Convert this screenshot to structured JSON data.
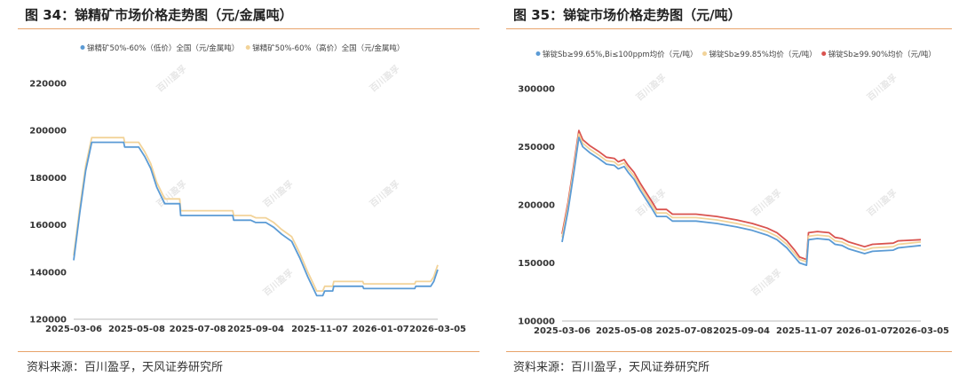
{
  "left": {
    "title": "图 34：锑精矿市场价格走势图（元/金属吨）",
    "source": "资料来源：百川盈孚，天风证券研究所",
    "chart_data": {
      "type": "line",
      "title": "",
      "xlabel": "",
      "ylabel": "",
      "ylim": [
        120000,
        220000
      ],
      "yticks": [
        120000,
        140000,
        160000,
        180000,
        200000,
        220000
      ],
      "xticks": [
        "2025-03-06",
        "2025-05-08",
        "2025-07-08",
        "2025-09-04",
        "2025-11-07",
        "2026-01-07",
        "2026-03-05"
      ],
      "legend_position": "top",
      "grid": false,
      "series": [
        {
          "name": "锑精矿50%-60%（低价）全国（元/金属吨）",
          "color": "#5b9bd5",
          "points": [
            [
              "2025-03-06",
              145000
            ],
            [
              "2025-03-12",
              165000
            ],
            [
              "2025-03-18",
              183000
            ],
            [
              "2025-03-24",
              195000
            ],
            [
              "2025-04-25",
              195000
            ],
            [
              "2025-04-26",
              193000
            ],
            [
              "2025-05-10",
              193000
            ],
            [
              "2025-05-16",
              189000
            ],
            [
              "2025-05-22",
              184000
            ],
            [
              "2025-05-28",
              176000
            ],
            [
              "2025-06-05",
              169000
            ],
            [
              "2025-06-20",
              169000
            ],
            [
              "2025-06-21",
              164000
            ],
            [
              "2025-08-12",
              164000
            ],
            [
              "2025-08-13",
              162000
            ],
            [
              "2025-08-30",
              162000
            ],
            [
              "2025-09-04",
              161000
            ],
            [
              "2025-09-14",
              161000
            ],
            [
              "2025-09-22",
              159000
            ],
            [
              "2025-09-30",
              156000
            ],
            [
              "2025-10-10",
              153000
            ],
            [
              "2025-10-18",
              146000
            ],
            [
              "2025-10-26",
              138000
            ],
            [
              "2025-11-04",
              130000
            ],
            [
              "2025-11-10",
              130000
            ],
            [
              "2025-11-12",
              132000
            ],
            [
              "2025-11-20",
              132000
            ],
            [
              "2025-11-21",
              134000
            ],
            [
              "2025-12-20",
              134000
            ],
            [
              "2025-12-21",
              133000
            ],
            [
              "2026-02-10",
              133000
            ],
            [
              "2026-02-11",
              134000
            ],
            [
              "2026-02-26",
              134000
            ],
            [
              "2026-03-01",
              136000
            ],
            [
              "2026-03-05",
              141000
            ]
          ]
        },
        {
          "name": "锑精矿50%-60%（高价）全国（元/金属吨）",
          "color": "#f2d399",
          "points": [
            [
              "2025-03-06",
              147000
            ],
            [
              "2025-03-12",
              167000
            ],
            [
              "2025-03-18",
              185000
            ],
            [
              "2025-03-24",
              197000
            ],
            [
              "2025-04-25",
              197000
            ],
            [
              "2025-04-26",
              195000
            ],
            [
              "2025-05-10",
              195000
            ],
            [
              "2025-05-16",
              191000
            ],
            [
              "2025-05-22",
              186000
            ],
            [
              "2025-05-28",
              178000
            ],
            [
              "2025-06-05",
              171000
            ],
            [
              "2025-06-20",
              171000
            ],
            [
              "2025-06-21",
              166000
            ],
            [
              "2025-08-12",
              166000
            ],
            [
              "2025-08-13",
              164000
            ],
            [
              "2025-08-30",
              164000
            ],
            [
              "2025-09-04",
              163000
            ],
            [
              "2025-09-14",
              163000
            ],
            [
              "2025-09-22",
              161000
            ],
            [
              "2025-09-30",
              158000
            ],
            [
              "2025-10-10",
              155000
            ],
            [
              "2025-10-18",
              148000
            ],
            [
              "2025-10-26",
              140000
            ],
            [
              "2025-11-04",
              132000
            ],
            [
              "2025-11-10",
              132000
            ],
            [
              "2025-11-12",
              134000
            ],
            [
              "2025-11-20",
              134000
            ],
            [
              "2025-11-21",
              136000
            ],
            [
              "2025-12-20",
              136000
            ],
            [
              "2025-12-21",
              135000
            ],
            [
              "2026-02-10",
              135000
            ],
            [
              "2026-02-11",
              136000
            ],
            [
              "2026-02-26",
              136000
            ],
            [
              "2026-03-01",
              138000
            ],
            [
              "2026-03-05",
              143000
            ]
          ]
        }
      ]
    }
  },
  "right": {
    "title": "图 35：锑锭市场价格走势图（元/吨）",
    "source": "资料来源：百川盈孚，天风证券研究所",
    "chart_data": {
      "type": "line",
      "title": "",
      "xlabel": "",
      "ylabel": "",
      "ylim": [
        100000,
        300000
      ],
      "yticks": [
        100000,
        150000,
        200000,
        250000,
        300000
      ],
      "xticks": [
        "2025-03-06",
        "2025-05-08",
        "2025-07-08",
        "2025-09-04",
        "2025-11-07",
        "2026-01-07",
        "2026-03-05"
      ],
      "legend_position": "top",
      "grid": false,
      "series": [
        {
          "name": "锑锭Sb≥99.65%,Bi≤100ppm均价（元/吨）",
          "color": "#5b9bd5",
          "points": [
            [
              "2025-03-06",
              168000
            ],
            [
              "2025-03-12",
              195000
            ],
            [
              "2025-03-18",
              228000
            ],
            [
              "2025-03-23",
              258000
            ],
            [
              "2025-03-27",
              250000
            ],
            [
              "2025-04-03",
              245000
            ],
            [
              "2025-04-12",
              240000
            ],
            [
              "2025-04-20",
              235000
            ],
            [
              "2025-04-28",
              234000
            ],
            [
              "2025-05-02",
              231000
            ],
            [
              "2025-05-08",
              233000
            ],
            [
              "2025-05-12",
              228000
            ],
            [
              "2025-05-18",
              222000
            ],
            [
              "2025-05-24",
              213000
            ],
            [
              "2025-05-30",
              205000
            ],
            [
              "2025-06-05",
              197000
            ],
            [
              "2025-06-10",
              190000
            ],
            [
              "2025-06-20",
              190000
            ],
            [
              "2025-06-26",
              186000
            ],
            [
              "2025-07-20",
              186000
            ],
            [
              "2025-08-10",
              184000
            ],
            [
              "2025-08-30",
              181000
            ],
            [
              "2025-09-15",
              178000
            ],
            [
              "2025-09-30",
              174000
            ],
            [
              "2025-10-10",
              170000
            ],
            [
              "2025-10-20",
              163000
            ],
            [
              "2025-10-28",
              155000
            ],
            [
              "2025-11-02",
              150000
            ],
            [
              "2025-11-09",
              148000
            ],
            [
              "2025-11-11",
              170000
            ],
            [
              "2025-11-20",
              171000
            ],
            [
              "2025-12-02",
              170000
            ],
            [
              "2025-12-08",
              166000
            ],
            [
              "2025-12-15",
              165000
            ],
            [
              "2025-12-22",
              162000
            ],
            [
              "2026-01-07",
              158000
            ],
            [
              "2026-01-15",
              160000
            ],
            [
              "2026-02-05",
              161000
            ],
            [
              "2026-02-10",
              163000
            ],
            [
              "2026-03-05",
              165000
            ]
          ]
        },
        {
          "name": "锑锭Sb≥99.85%均价（元/吨）",
          "color": "#f2d399",
          "points": [
            [
              "2025-03-06",
              172000
            ],
            [
              "2025-03-12",
              199000
            ],
            [
              "2025-03-18",
              232000
            ],
            [
              "2025-03-23",
              261000
            ],
            [
              "2025-03-27",
              253000
            ],
            [
              "2025-04-03",
              248000
            ],
            [
              "2025-04-12",
              243000
            ],
            [
              "2025-04-20",
              238000
            ],
            [
              "2025-04-28",
              237000
            ],
            [
              "2025-05-02",
              234000
            ],
            [
              "2025-05-08",
              236000
            ],
            [
              "2025-05-12",
              231000
            ],
            [
              "2025-05-18",
              225000
            ],
            [
              "2025-05-24",
              216000
            ],
            [
              "2025-05-30",
              208000
            ],
            [
              "2025-06-05",
              200000
            ],
            [
              "2025-06-10",
              193000
            ],
            [
              "2025-06-20",
              193000
            ],
            [
              "2025-06-26",
              189000
            ],
            [
              "2025-07-20",
              189000
            ],
            [
              "2025-08-10",
              187000
            ],
            [
              "2025-08-30",
              184000
            ],
            [
              "2025-09-15",
              181000
            ],
            [
              "2025-09-30",
              177000
            ],
            [
              "2025-10-10",
              173000
            ],
            [
              "2025-10-20",
              166000
            ],
            [
              "2025-10-28",
              158000
            ],
            [
              "2025-11-02",
              153000
            ],
            [
              "2025-11-09",
              151000
            ],
            [
              "2025-11-11",
              173000
            ],
            [
              "2025-11-20",
              174000
            ],
            [
              "2025-12-02",
              173000
            ],
            [
              "2025-12-08",
              169000
            ],
            [
              "2025-12-15",
              168000
            ],
            [
              "2025-12-22",
              165000
            ],
            [
              "2026-01-07",
              161000
            ],
            [
              "2026-01-15",
              163000
            ],
            [
              "2026-02-05",
              164000
            ],
            [
              "2026-02-10",
              166000
            ],
            [
              "2026-03-05",
              168000
            ]
          ]
        },
        {
          "name": "锑锭Sb≥99.90%均价（元/吨）",
          "color": "#d9534f",
          "points": [
            [
              "2025-03-06",
              175000
            ],
            [
              "2025-03-12",
              202000
            ],
            [
              "2025-03-18",
              235000
            ],
            [
              "2025-03-23",
              264000
            ],
            [
              "2025-03-27",
              256000
            ],
            [
              "2025-04-03",
              251000
            ],
            [
              "2025-04-12",
              246000
            ],
            [
              "2025-04-20",
              241000
            ],
            [
              "2025-04-28",
              240000
            ],
            [
              "2025-05-02",
              237000
            ],
            [
              "2025-05-08",
              239000
            ],
            [
              "2025-05-12",
              234000
            ],
            [
              "2025-05-18",
              228000
            ],
            [
              "2025-05-24",
              219000
            ],
            [
              "2025-05-30",
              211000
            ],
            [
              "2025-06-05",
              203000
            ],
            [
              "2025-06-10",
              196000
            ],
            [
              "2025-06-20",
              196000
            ],
            [
              "2025-06-26",
              192000
            ],
            [
              "2025-07-20",
              192000
            ],
            [
              "2025-08-10",
              190000
            ],
            [
              "2025-08-30",
              187000
            ],
            [
              "2025-09-15",
              184000
            ],
            [
              "2025-09-30",
              180000
            ],
            [
              "2025-10-10",
              176000
            ],
            [
              "2025-10-20",
              169000
            ],
            [
              "2025-10-28",
              161000
            ],
            [
              "2025-11-02",
              155000
            ],
            [
              "2025-11-09",
              153000
            ],
            [
              "2025-11-11",
              176000
            ],
            [
              "2025-11-20",
              177000
            ],
            [
              "2025-12-02",
              176000
            ],
            [
              "2025-12-08",
              172000
            ],
            [
              "2025-12-15",
              171000
            ],
            [
              "2025-12-22",
              168000
            ],
            [
              "2026-01-07",
              164000
            ],
            [
              "2026-01-15",
              166000
            ],
            [
              "2026-02-05",
              167000
            ],
            [
              "2026-02-10",
              169000
            ],
            [
              "2026-03-05",
              170000
            ]
          ]
        }
      ]
    }
  }
}
